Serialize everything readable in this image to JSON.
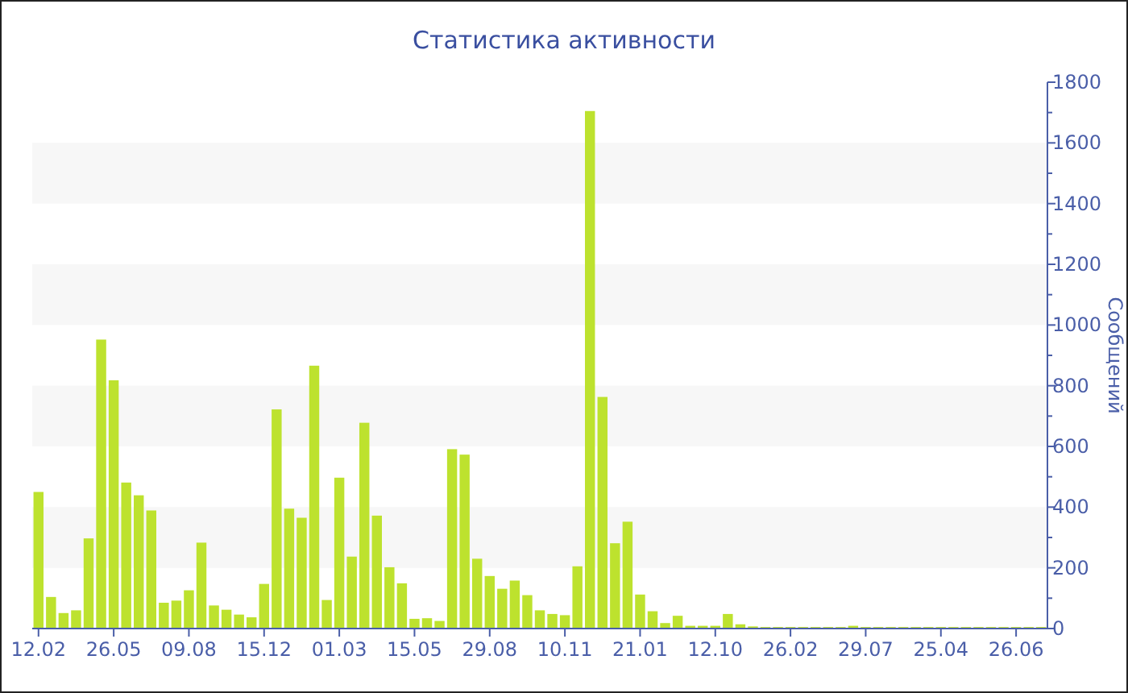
{
  "chart_data": {
    "type": "bar",
    "title": "Статистика активности",
    "ylabel": "Сообщений",
    "categories": [
      "12.02",
      null,
      null,
      null,
      null,
      null,
      "26.05",
      null,
      null,
      null,
      null,
      null,
      "09.08",
      null,
      null,
      null,
      null,
      null,
      "15.12",
      null,
      null,
      null,
      null,
      null,
      "01.03",
      null,
      null,
      null,
      null,
      null,
      "15.05",
      null,
      null,
      null,
      null,
      null,
      "29.08",
      null,
      null,
      null,
      null,
      null,
      "10.11",
      null,
      null,
      null,
      null,
      null,
      "21.01",
      null,
      null,
      null,
      null,
      null,
      "12.10",
      null,
      null,
      null,
      null,
      null,
      "26.02",
      null,
      null,
      null,
      null,
      null,
      "29.07",
      null,
      null,
      null,
      null,
      null,
      "25.04",
      null,
      null,
      null,
      null,
      null,
      "26.06",
      null,
      null
    ],
    "values": [
      450,
      104,
      51,
      60,
      297,
      952,
      818,
      481,
      439,
      389,
      85,
      92,
      126,
      283,
      76,
      62,
      46,
      37,
      147,
      722,
      395,
      365,
      866,
      94,
      497,
      237,
      678,
      372,
      202,
      149,
      32,
      34,
      25,
      591,
      573,
      230,
      173,
      131,
      158,
      110,
      60,
      48,
      44,
      205,
      1705,
      763,
      281,
      352,
      112,
      57,
      18,
      42,
      9,
      9,
      9,
      48,
      14,
      7,
      5,
      5,
      5,
      5,
      5,
      5,
      5,
      9,
      5,
      5,
      5,
      5,
      5,
      5,
      5,
      5,
      5,
      5,
      5,
      5,
      5,
      5,
      5
    ],
    "color": "#bde22e",
    "ylim": [
      0,
      1800
    ],
    "yticks": [
      0,
      {
        "value": 100,
        "label": null
      },
      200,
      {
        "value": 300,
        "label": null
      },
      400,
      {
        "value": 500,
        "label": null
      },
      600,
      {
        "value": 700,
        "label": null
      },
      800,
      {
        "value": 900,
        "label": null
      },
      1000,
      {
        "value": 1100,
        "label": null
      },
      1200,
      {
        "value": 1300,
        "label": null
      },
      1400,
      {
        "value": 1500,
        "label": null
      },
      1600,
      {
        "value": 1700,
        "label": null
      },
      1800
    ],
    "bands": [
      {
        "axis": "y",
        "from": 200,
        "to": 400,
        "color": "#f7f7f7"
      },
      {
        "axis": "y",
        "from": 600,
        "to": 800,
        "color": "#f7f7f7"
      },
      {
        "axis": "y",
        "from": 1000,
        "to": 1200,
        "color": "#f7f7f7"
      },
      {
        "axis": "y",
        "from": 1400,
        "to": 1600,
        "color": "#f7f7f7"
      }
    ]
  }
}
